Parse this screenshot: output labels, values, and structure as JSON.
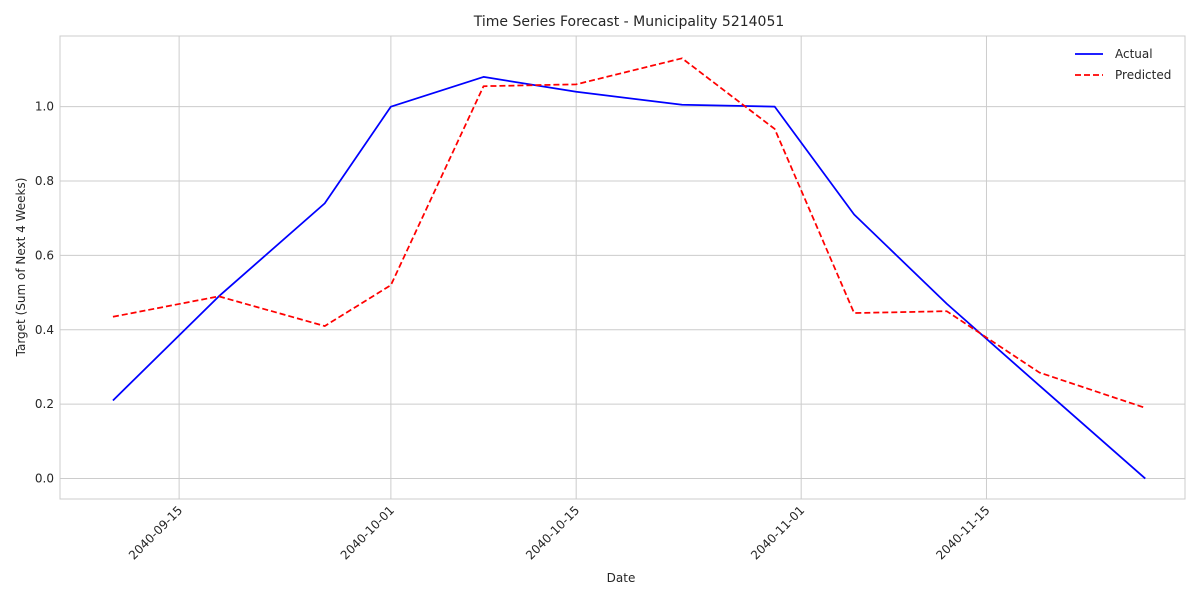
{
  "chart_data": {
    "type": "line",
    "title": "Time Series Forecast - Municipality 5214051",
    "xlabel": "Date",
    "ylabel": "Target (Sum of Next 4 Weeks)",
    "x": [
      "2040-09-10",
      "2040-09-18",
      "2040-09-26",
      "2040-10-01",
      "2040-10-08",
      "2040-10-15",
      "2040-10-23",
      "2040-10-30",
      "2040-11-05",
      "2040-11-12",
      "2040-11-19",
      "2040-11-27"
    ],
    "series": [
      {
        "name": "Actual",
        "color": "#0000ff",
        "style": "solid",
        "values": [
          0.21,
          0.49,
          0.74,
          1.0,
          1.08,
          1.04,
          1.005,
          1.0,
          0.71,
          0.47,
          0.25,
          0.0
        ]
      },
      {
        "name": "Predicted",
        "color": "#ff0000",
        "style": "dashed",
        "values": [
          0.435,
          0.49,
          0.41,
          0.52,
          1.055,
          1.06,
          1.13,
          0.94,
          0.445,
          0.45,
          0.285,
          0.19
        ]
      }
    ],
    "xticks": [
      "2040-09-15",
      "2040-10-01",
      "2040-10-15",
      "2040-11-01",
      "2040-11-15"
    ],
    "yticks": [
      "0.0",
      "0.2",
      "0.4",
      "0.6",
      "0.8",
      "1.0"
    ],
    "xlim": [
      "2040-09-06",
      "2040-11-30"
    ],
    "ylim": [
      -0.055,
      1.19
    ],
    "grid": true,
    "legend_position": "top-right"
  }
}
